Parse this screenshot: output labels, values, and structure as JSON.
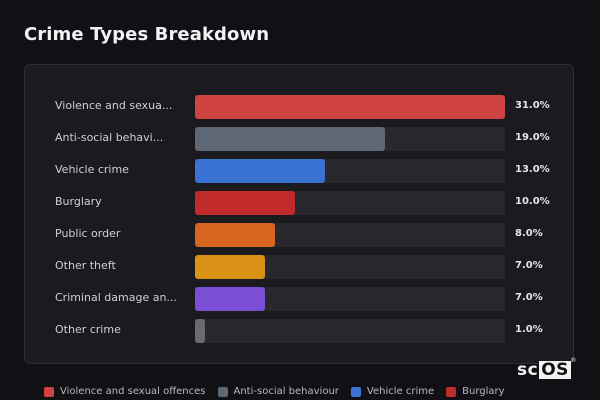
{
  "title": "Crime Types Breakdown",
  "logo": {
    "prefix": "sc",
    "boxed": "OS",
    "mark": "®"
  },
  "colors": {
    "background": "#111014",
    "card": "#1b1b1f",
    "track": "#28282d"
  },
  "chart_data": {
    "type": "bar",
    "orientation": "horizontal",
    "categories": [
      "Violence and sexua...",
      "Anti-social behavi...",
      "Vehicle crime",
      "Burglary",
      "Public order",
      "Other theft",
      "Criminal damage an...",
      "Other crime"
    ],
    "values": [
      31.0,
      19.0,
      13.0,
      10.0,
      8.0,
      7.0,
      7.0,
      1.0
    ],
    "value_labels": [
      "31.0%",
      "19.0%",
      "13.0%",
      "10.0%",
      "8.0%",
      "7.0%",
      "7.0%",
      "1.0%"
    ],
    "colors": [
      "#d04343",
      "#5d6775",
      "#3a73d4",
      "#c02a2a",
      "#d6651f",
      "#d99116",
      "#7a4fd6",
      "#6a6a72"
    ],
    "xlim": [
      0,
      31.0
    ],
    "unit": "%",
    "legend": {
      "position": "bottom",
      "entries": [
        {
          "label": "Violence and sexual offences",
          "color": "#d04343"
        },
        {
          "label": "Anti-social behaviour",
          "color": "#5d6775"
        },
        {
          "label": "Vehicle crime",
          "color": "#3a73d4"
        },
        {
          "label": "Burglary",
          "color": "#c02a2a"
        }
      ]
    }
  }
}
